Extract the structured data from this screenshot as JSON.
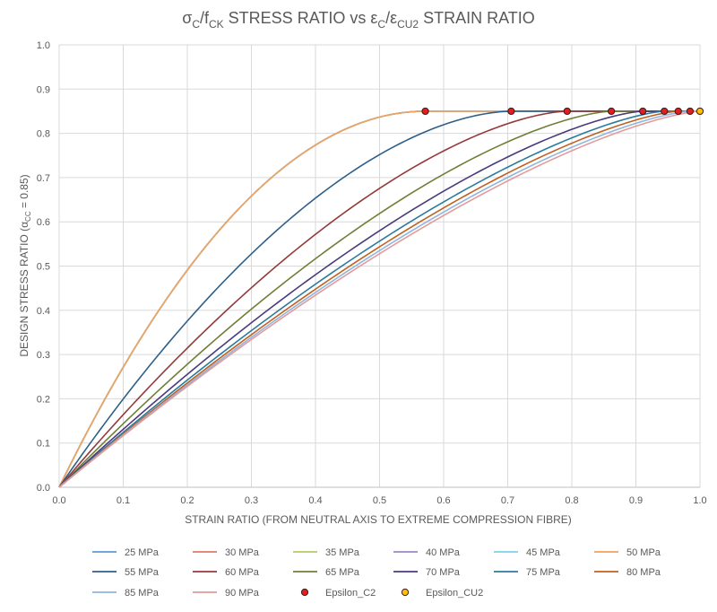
{
  "chart_data": {
    "type": "line",
    "title": {
      "sigma": "σ",
      "c_sub": "C",
      "slash1": "/f",
      "ck_sub": "CK",
      "mid": " STRESS RATIO vs ε",
      "c_sub2": "C",
      "slash2": "/ε",
      "cu2_sub": "CU2",
      "tail": " STRAIN RATIO"
    },
    "xlabel": "STRAIN RATIO (FROM NEUTRAL AXIS TO EXTREME COMPRESSION FIBRE)",
    "ylabel": {
      "main": "DESIGN STRESS RATIO (α",
      "sub": "CC",
      "tail": " = 0.85)"
    },
    "xlim": [
      0,
      1
    ],
    "ylim": [
      0,
      1
    ],
    "x_ticks": [
      "0.0",
      "0.1",
      "0.2",
      "0.3",
      "0.4",
      "0.5",
      "0.6",
      "0.7",
      "0.8",
      "0.9",
      "1.0"
    ],
    "y_ticks": [
      "0.0",
      "0.1",
      "0.2",
      "0.3",
      "0.4",
      "0.5",
      "0.6",
      "0.7",
      "0.8",
      "0.9",
      "1.0"
    ],
    "grid": true,
    "legend_position": "bottom",
    "curve_model": "parabola-rectangle: y = 0.85*(1-(1-x/x_c2)^n) for x<=x_c2, else 0.85",
    "series": [
      {
        "name": "25 MPa",
        "x_c2": 0.5714,
        "n": 2.0,
        "color": "#5b9bd5"
      },
      {
        "name": "30 MPa",
        "x_c2": 0.5714,
        "n": 2.0,
        "color": "#e07b6a"
      },
      {
        "name": "35 MPa",
        "x_c2": 0.5714,
        "n": 2.0,
        "color": "#b5cc6a"
      },
      {
        "name": "40 MPa",
        "x_c2": 0.5714,
        "n": 2.0,
        "color": "#9e86c8"
      },
      {
        "name": "45 MPa",
        "x_c2": 0.5714,
        "n": 2.0,
        "color": "#7fd3e8"
      },
      {
        "name": "50 MPa",
        "x_c2": 0.5714,
        "n": 2.0,
        "color": "#f0a35e"
      },
      {
        "name": "55 MPa",
        "x_c2": 0.7054,
        "n": 1.75,
        "color": "#2e5f8a"
      },
      {
        "name": "60 MPa",
        "x_c2": 0.7927,
        "n": 1.59,
        "color": "#943a3a"
      },
      {
        "name": "65 MPa",
        "x_c2": 0.8617,
        "n": 1.5,
        "color": "#6f7f35"
      },
      {
        "name": "70 MPa",
        "x_c2": 0.9108,
        "n": 1.44,
        "color": "#4b3a7d"
      },
      {
        "name": "75 MPa",
        "x_c2": 0.9444,
        "n": 1.41,
        "color": "#2b7b9e"
      },
      {
        "name": "80 MPa",
        "x_c2": 0.9661,
        "n": 1.4,
        "color": "#c0601f"
      },
      {
        "name": "85 MPa",
        "x_c2": 0.9845,
        "n": 1.4,
        "color": "#8fb4de"
      },
      {
        "name": "90 MPa",
        "x_c2": 1.0,
        "n": 1.4,
        "color": "#e39a9a"
      }
    ],
    "markers": {
      "epsilon_c2": {
        "name": "Epsilon_C2",
        "color": "#e02020",
        "points": [
          [
            0.5714,
            0.85
          ],
          [
            0.7054,
            0.85
          ],
          [
            0.7927,
            0.85
          ],
          [
            0.8617,
            0.85
          ],
          [
            0.9108,
            0.85
          ],
          [
            0.9444,
            0.85
          ],
          [
            0.9661,
            0.85
          ],
          [
            0.9845,
            0.85
          ]
        ]
      },
      "epsilon_cu2": {
        "name": "Epsilon_CU2",
        "color": "#ffc000",
        "points": [
          [
            1.0,
            0.85
          ]
        ]
      }
    }
  }
}
